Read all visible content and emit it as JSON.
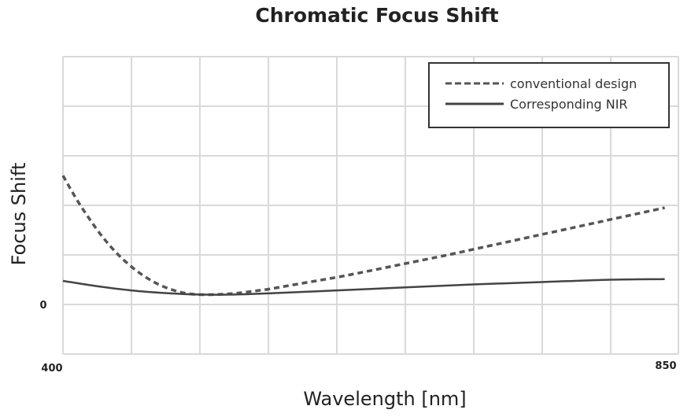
{
  "chart_data": {
    "type": "line",
    "title": "Chromatic Focus Shift",
    "xlabel": "Wavelength [nm]",
    "ylabel": "Focus Shift",
    "x_tick_labels": [
      "400",
      "850"
    ],
    "y_tick_labels": [
      "0"
    ],
    "xlim": [
      400,
      850
    ],
    "ylim": [
      -1,
      4
    ],
    "grid": true,
    "legend_position": "top-right",
    "series": [
      {
        "name": "conventional design",
        "style": "dashed",
        "color": "#555555",
        "x": [
          400,
          410,
          420,
          430,
          440,
          450,
          460,
          470,
          480,
          490,
          500,
          510,
          520,
          530,
          540,
          550,
          560,
          580,
          600,
          620,
          650,
          680,
          700,
          720,
          750,
          780,
          800,
          820,
          840
        ],
        "y": [
          2.0,
          1.6,
          1.25,
          0.94,
          0.68,
          0.47,
          0.3,
          0.17,
          0.08,
          0.02,
          0.0,
          0.0,
          0.01,
          0.03,
          0.06,
          0.09,
          0.13,
          0.21,
          0.29,
          0.38,
          0.52,
          0.66,
          0.76,
          0.86,
          1.01,
          1.16,
          1.26,
          1.36,
          1.46
        ]
      },
      {
        "name": "Corresponding NIR",
        "style": "solid",
        "color": "#444444",
        "x": [
          400,
          425,
          450,
          475,
          500,
          525,
          550,
          600,
          650,
          700,
          750,
          800,
          840
        ],
        "y": [
          0.23,
          0.14,
          0.07,
          0.025,
          0.0,
          0.0,
          0.02,
          0.07,
          0.12,
          0.17,
          0.21,
          0.25,
          0.26
        ]
      }
    ]
  }
}
